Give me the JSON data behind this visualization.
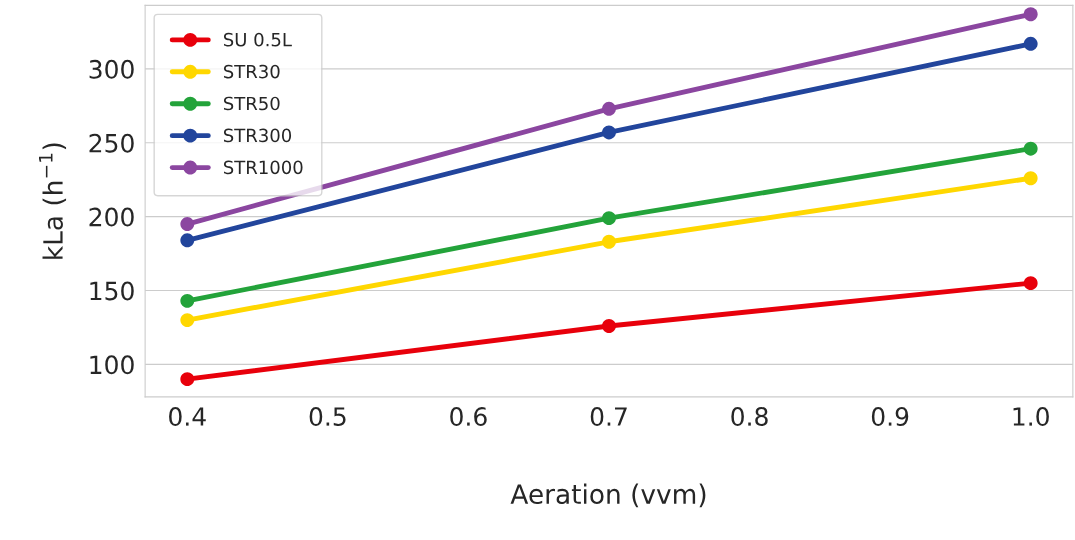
{
  "chart_data": {
    "type": "line",
    "xlabel": "Aeration (vvm)",
    "ylabel": "kLa (h$^{−1}$)",
    "x": [
      0.4,
      0.7,
      1.0
    ],
    "series": [
      {
        "name": "SU 0.5L",
        "color": "#e8000b",
        "values": [
          90,
          126,
          155
        ]
      },
      {
        "name": "STR30",
        "color": "#ffd700",
        "values": [
          130,
          183,
          226
        ]
      },
      {
        "name": "STR50",
        "color": "#23a33a",
        "values": [
          143,
          199,
          246
        ]
      },
      {
        "name": "STR300",
        "color": "#22459c",
        "values": [
          184,
          257,
          317
        ]
      },
      {
        "name": "STR1000",
        "color": "#8b46a0",
        "values": [
          195,
          273,
          337
        ]
      }
    ],
    "xlim": [
      0.37,
      1.03
    ],
    "ylim": [
      78,
      343
    ],
    "xticks": [
      {
        "value": 0.4,
        "label": "0.4"
      },
      {
        "value": 0.5,
        "label": "0.5"
      },
      {
        "value": 0.6,
        "label": "0.6"
      },
      {
        "value": 0.7,
        "label": "0.7"
      },
      {
        "value": 0.8,
        "label": "0.8"
      },
      {
        "value": 0.9,
        "label": "0.9"
      },
      {
        "value": 1.0,
        "label": "1.0"
      }
    ],
    "yticks": [
      100,
      150,
      200,
      250,
      300
    ],
    "grid": "y",
    "legend": "top left",
    "marker": "circle",
    "line_style": "solid"
  }
}
